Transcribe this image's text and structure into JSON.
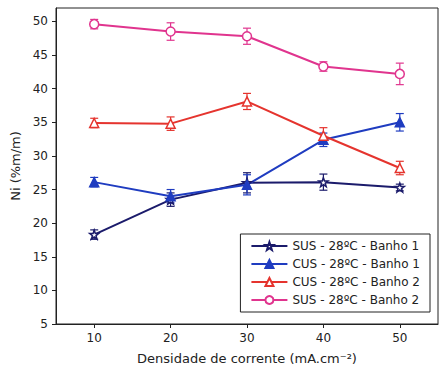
{
  "chart_data": {
    "type": "line",
    "x_label": "Densidade de corrente (mA.cm⁻²)",
    "y_label": "Ni (%m/m)",
    "xlim": [
      5,
      55
    ],
    "xticks": [
      10,
      20,
      30,
      40,
      50
    ],
    "ylim": [
      5,
      52
    ],
    "yticks": [
      5,
      10,
      15,
      20,
      25,
      30,
      35,
      40,
      45,
      50
    ],
    "grid": false,
    "legend": "lower right",
    "x": [
      10,
      20,
      30,
      40,
      50
    ],
    "series": [
      {
        "name": "SUS - 28ºC - Banho 1",
        "color": "#1b1b6b",
        "marker": "star-open",
        "values": [
          18.3,
          23.5,
          26.0,
          26.1,
          25.3
        ],
        "errors": [
          0.7,
          1.0,
          1.5,
          1.2,
          0.5
        ]
      },
      {
        "name": "CUS - 28ºC - Banho 1",
        "color": "#1f3cc0",
        "marker": "triangle",
        "values": [
          26.1,
          24.0,
          25.7,
          32.4,
          35.0
        ],
        "errors": [
          0.7,
          1.0,
          1.5,
          1.0,
          1.3
        ]
      },
      {
        "name": "CUS - 28ºC - Banho 2",
        "color": "#e5342e",
        "marker": "triangle-open",
        "values": [
          34.9,
          34.8,
          38.1,
          33.0,
          28.2
        ],
        "errors": [
          0.7,
          1.0,
          1.2,
          1.2,
          1.0
        ]
      },
      {
        "name": "SUS - 28ºC - Banho 2",
        "color": "#e0348e",
        "marker": "circle-open",
        "values": [
          49.6,
          48.5,
          47.8,
          43.3,
          42.2
        ],
        "errors": [
          0.7,
          1.3,
          1.2,
          0.7,
          1.6
        ]
      }
    ]
  }
}
